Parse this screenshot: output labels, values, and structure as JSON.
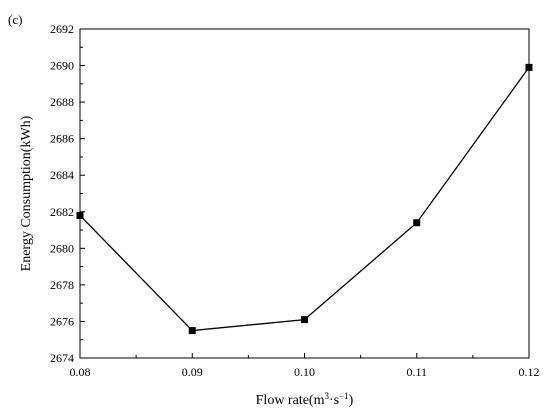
{
  "panel_label": "(c)",
  "chart_data": {
    "type": "line",
    "xlabel_main": "Flow rate(m",
    "xlabel_sup1": "3",
    "xlabel_mid": "·s",
    "xlabel_sup2": "−1",
    "xlabel_end": ")",
    "ylabel": "Energy Consumption(kWh)",
    "x": [
      0.08,
      0.09,
      0.1,
      0.11,
      0.12
    ],
    "series": [
      {
        "values": [
          2681.8,
          2675.5,
          2676.1,
          2681.4,
          2689.9
        ]
      }
    ],
    "xlim": [
      0.08,
      0.12
    ],
    "ylim": [
      2674,
      2692
    ],
    "xticks": [
      0.08,
      0.09,
      0.1,
      0.11,
      0.12
    ],
    "xtick_labels": [
      "0.08",
      "0.09",
      "0.10",
      "0.11",
      "0.12"
    ],
    "yticks": [
      2674,
      2676,
      2678,
      2680,
      2682,
      2684,
      2686,
      2688,
      2690,
      2692
    ],
    "ytick_labels": [
      "2674",
      "2676",
      "2678",
      "2680",
      "2682",
      "2684",
      "2686",
      "2688",
      "2690",
      "2692"
    ],
    "grid": false,
    "line_color": "#000000",
    "marker": "square"
  }
}
